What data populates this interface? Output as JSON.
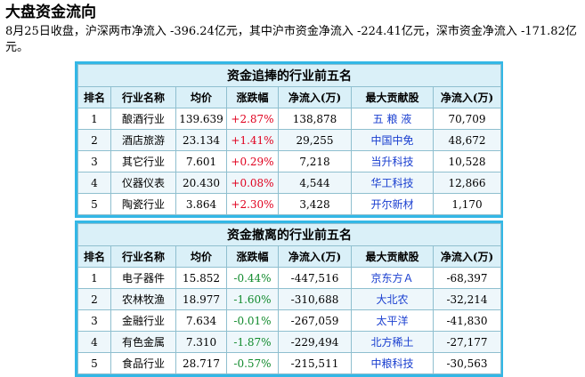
{
  "page": {
    "title": "大盘资金流向",
    "summary": "8月25日收盘，沪深两市净流入 -396.24亿元，其中沪市资金净流入 -224.41亿元，深市资金净流入 -171.82亿元。"
  },
  "columns": [
    "排名",
    "行业名称",
    "均价",
    "涨跌幅",
    "净流入(万)",
    "最大贡献股",
    "净流入(万)"
  ],
  "inflow": {
    "title": "资金追捧的行业前五名",
    "rows": [
      {
        "rank": "1",
        "industry": "酿酒行业",
        "price": "139.639",
        "change": "+2.87%",
        "net": "138,878",
        "stock": "五 粮 液",
        "stock_net": "70,709"
      },
      {
        "rank": "2",
        "industry": "酒店旅游",
        "price": "23.134",
        "change": "+1.41%",
        "net": "29,255",
        "stock": "中国中免",
        "stock_net": "48,672"
      },
      {
        "rank": "3",
        "industry": "其它行业",
        "price": "7.601",
        "change": "+0.29%",
        "net": "7,218",
        "stock": "当升科技",
        "stock_net": "10,528"
      },
      {
        "rank": "4",
        "industry": "仪器仪表",
        "price": "20.430",
        "change": "+0.08%",
        "net": "4,544",
        "stock": "华工科技",
        "stock_net": "12,866"
      },
      {
        "rank": "5",
        "industry": "陶瓷行业",
        "price": "3.864",
        "change": "+2.30%",
        "net": "3,428",
        "stock": "开尔新材",
        "stock_net": "1,170"
      }
    ]
  },
  "outflow": {
    "title": "资金撤离的行业前五名",
    "rows": [
      {
        "rank": "1",
        "industry": "电子器件",
        "price": "15.852",
        "change": "-0.44%",
        "net": "-447,516",
        "stock": "京东方Ａ",
        "stock_net": "-68,397"
      },
      {
        "rank": "2",
        "industry": "农林牧渔",
        "price": "18.977",
        "change": "-1.60%",
        "net": "-310,688",
        "stock": "大北农",
        "stock_net": "-32,214"
      },
      {
        "rank": "3",
        "industry": "金融行业",
        "price": "7.634",
        "change": "-0.01%",
        "net": "-267,059",
        "stock": "太平洋",
        "stock_net": "-41,830"
      },
      {
        "rank": "4",
        "industry": "有色金属",
        "price": "7.310",
        "change": "-1.87%",
        "net": "-229,494",
        "stock": "北方稀土",
        "stock_net": "-27,177"
      },
      {
        "rank": "5",
        "industry": "食品行业",
        "price": "28.717",
        "change": "-0.57%",
        "net": "-215,511",
        "stock": "中粮科技",
        "stock_net": "-30,563"
      }
    ]
  },
  "colors": {
    "border": "#33b7e6",
    "header_bg": "#daf0f8",
    "up": "#e0001e",
    "down": "#108a2c",
    "stock_link": "#1a3fd0"
  }
}
